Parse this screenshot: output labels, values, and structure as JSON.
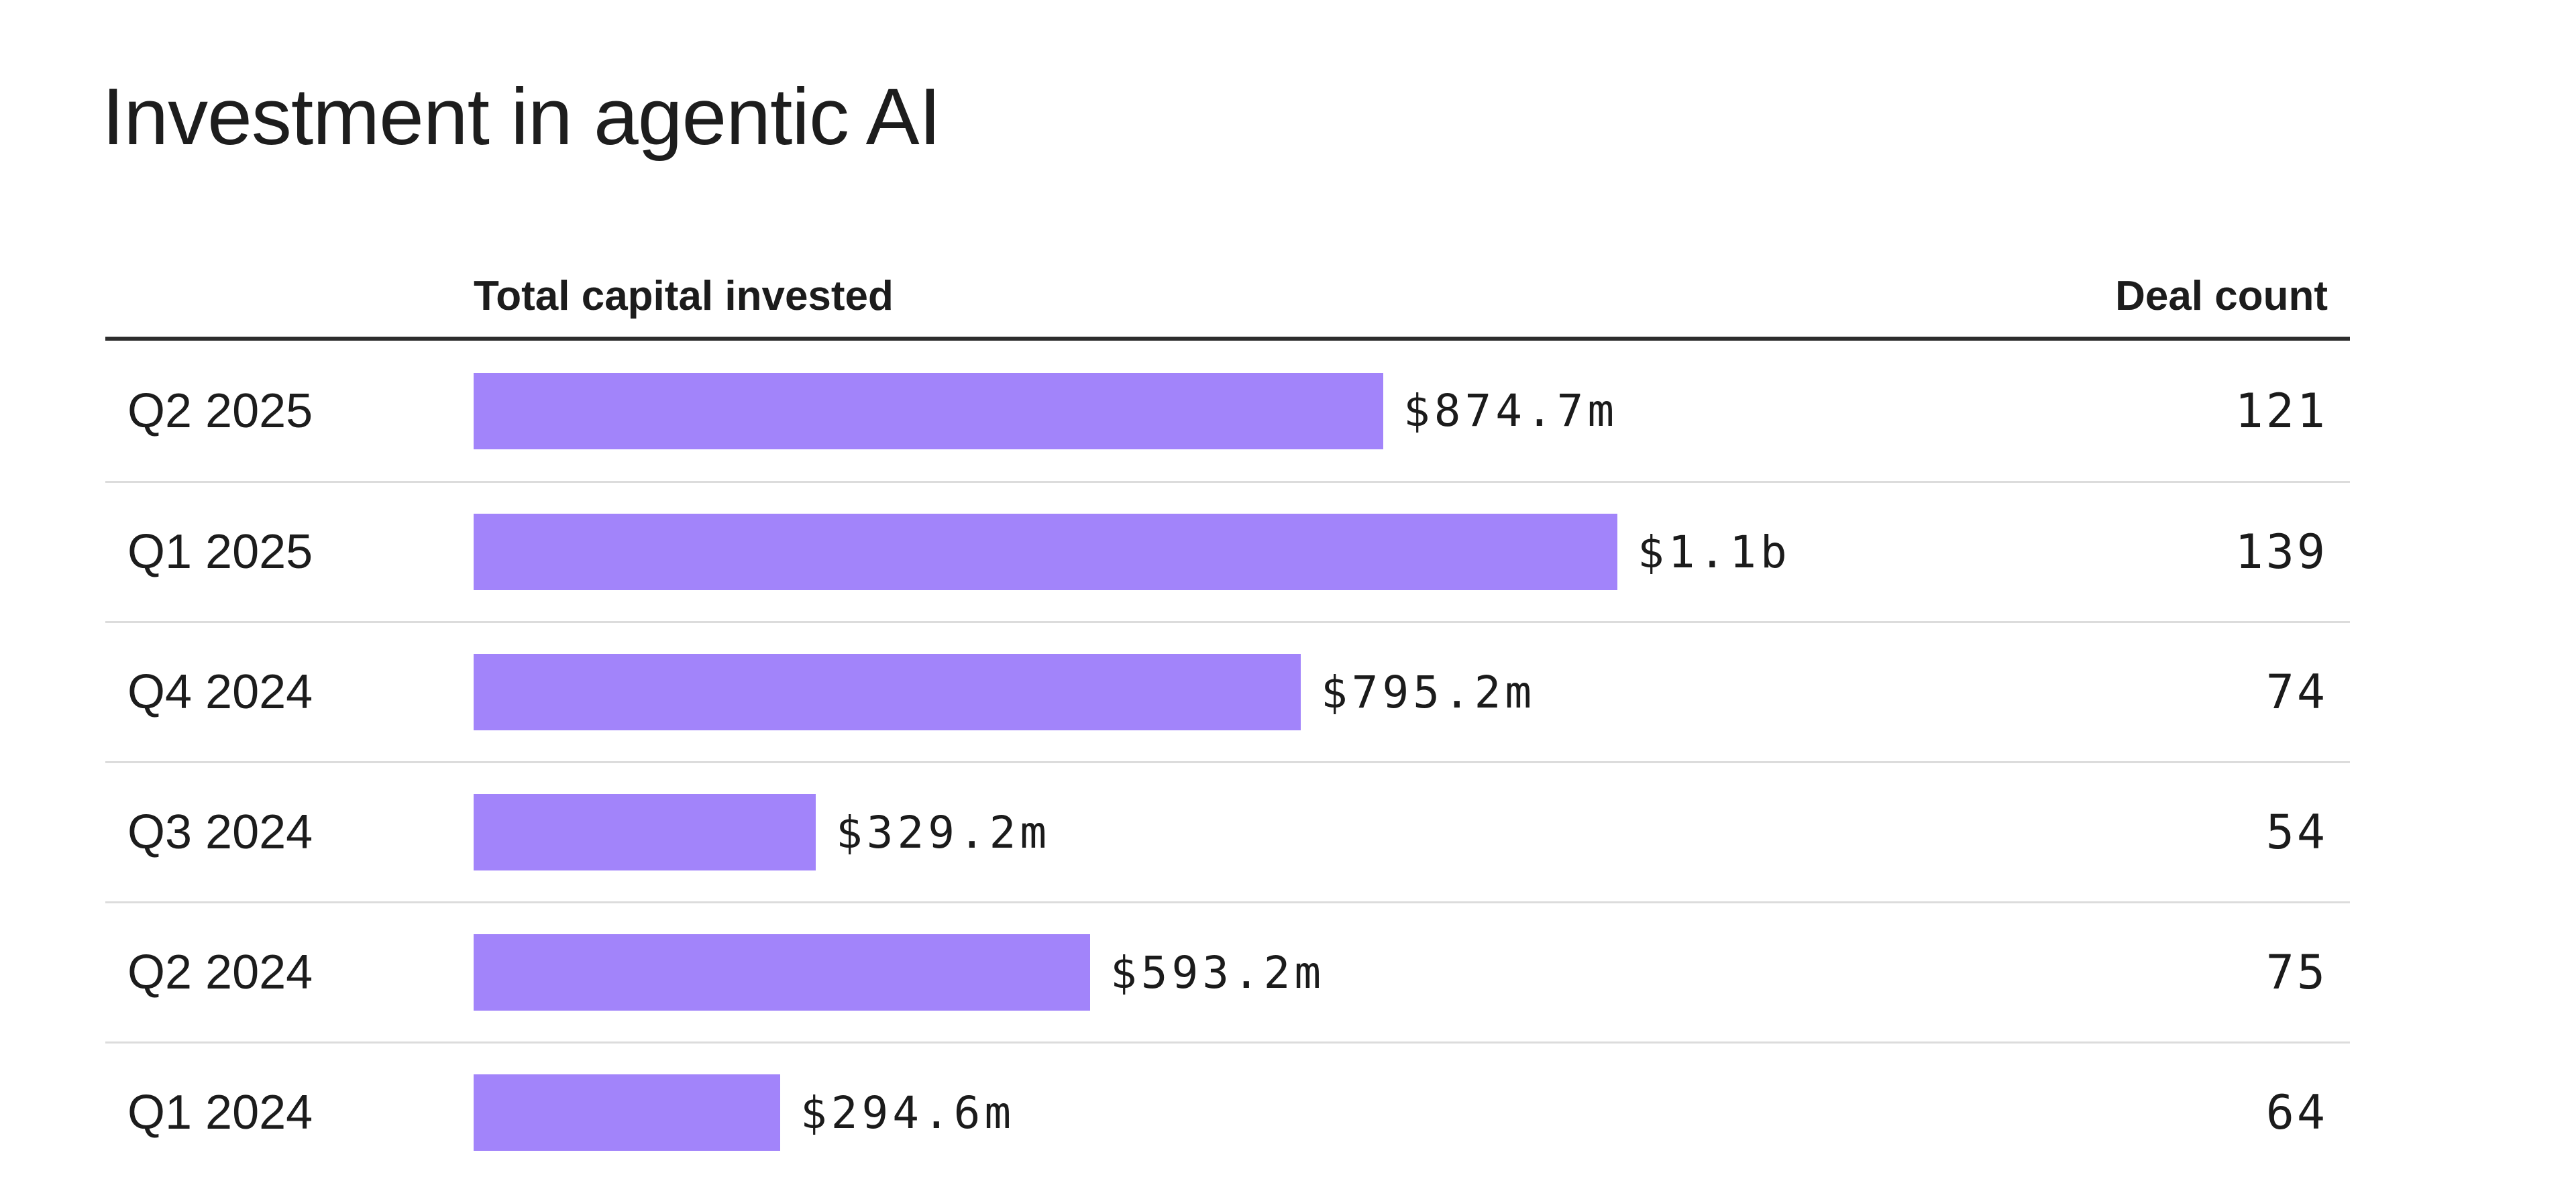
{
  "title": "Investment in agentic AI",
  "columns": {
    "capital": "Total capital invested",
    "deals": "Deal count"
  },
  "rows": [
    {
      "quarter": "Q2 2025",
      "capital_label": "$874.7m",
      "deal_count": "121"
    },
    {
      "quarter": "Q1 2025",
      "capital_label": "$1.1b",
      "deal_count": "139"
    },
    {
      "quarter": "Q4 2024",
      "capital_label": "$795.2m",
      "deal_count": "74"
    },
    {
      "quarter": "Q3 2024",
      "capital_label": "$329.2m",
      "deal_count": "54"
    },
    {
      "quarter": "Q2 2024",
      "capital_label": "$593.2m",
      "deal_count": "75"
    },
    {
      "quarter": "Q1 2024",
      "capital_label": "$294.6m",
      "deal_count": "64"
    }
  ],
  "chart_data": {
    "type": "bar",
    "orientation": "horizontal",
    "title": "Investment in agentic AI",
    "categories": [
      "Q2 2025",
      "Q1 2025",
      "Q4 2024",
      "Q3 2024",
      "Q2 2024",
      "Q1 2024"
    ],
    "series": [
      {
        "name": "Total capital invested ($m)",
        "values": [
          874.7,
          1100,
          795.2,
          329.2,
          593.2,
          294.6
        ],
        "labels": [
          "$874.7m",
          "$1.1b",
          "$795.2m",
          "$329.2m",
          "$593.2m",
          "$294.6m"
        ]
      },
      {
        "name": "Deal count",
        "values": [
          121,
          139,
          74,
          54,
          75,
          64
        ]
      }
    ],
    "xlim_m": [
      0,
      2160
    ],
    "grid": false,
    "legend": "none",
    "value_labels": "end-of-bar"
  },
  "colors": {
    "bar": "#A284FA",
    "text": "#1C1C1C",
    "header_rule": "#2D2D2D",
    "row_separator": "#DCDCDC",
    "background": "#FFFFFF"
  }
}
